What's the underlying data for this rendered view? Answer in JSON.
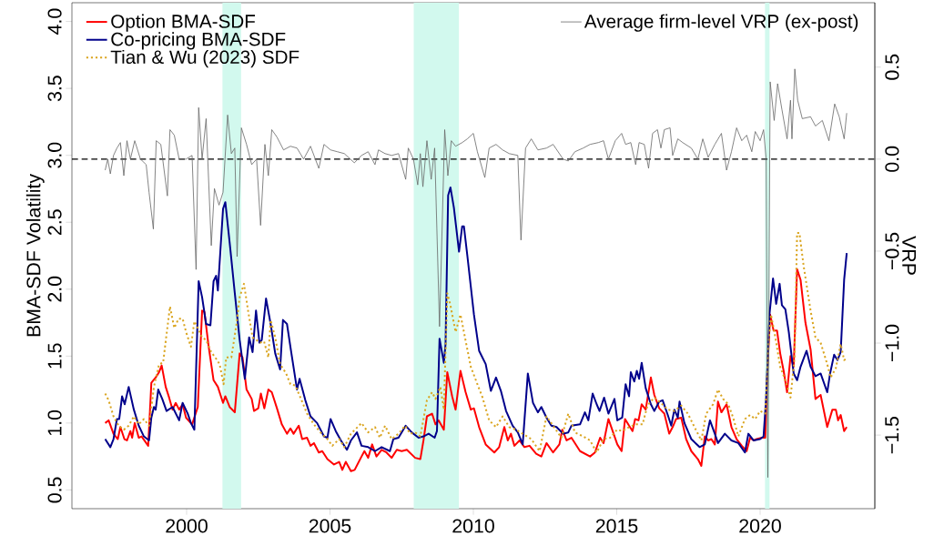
{
  "chart_data": {
    "type": "line",
    "ylabel": "BMA-SDF Volatility",
    "y2label": "VRP",
    "legend": "top",
    "grid": false,
    "xlim": [
      1996.0,
      2024.0
    ],
    "xticks": [
      2000,
      2005,
      2010,
      2015,
      2020
    ],
    "ylim": [
      0.36,
      4.14
    ],
    "yticks": [
      0.5,
      {
        "value": 1,
        "label": "1.0"
      },
      1.5,
      {
        "value": 2,
        "label": "2.0"
      },
      2.5,
      {
        "value": 3,
        "label": "3.0"
      },
      3.5,
      {
        "value": 4,
        "label": "4.0"
      }
    ],
    "y2lim": [
      -1.9,
      0.85
    ],
    "y2ticks": [
      0.5,
      {
        "value": 0,
        "label": "0.0"
      },
      {
        "value": -0.5,
        "label": "−0.5"
      },
      {
        "value": -1,
        "label": "−1.0"
      },
      {
        "value": -1.5,
        "label": "−1.5"
      }
    ],
    "bands": [
      {
        "axis": "x",
        "from": 2001.25,
        "to": 2001.9,
        "color": "#d2f9ee"
      },
      {
        "axis": "x",
        "from": 2007.92,
        "to": 2009.5,
        "color": "#d2f9ee"
      },
      {
        "axis": "x",
        "from": 2020.17,
        "to": 2020.33,
        "color": "#d2f9ee"
      }
    ],
    "ref_lines": [
      {
        "axis": "y2",
        "value": 0,
        "color": "#000000",
        "line_style": "dashed"
      }
    ],
    "series": [
      {
        "name": "Option BMA-SDF",
        "color": "#ff0000",
        "line_style": "solid",
        "x": [
          1997.16,
          1997.28,
          1997.45,
          1997.6,
          1997.69,
          1997.83,
          1997.92,
          1998.04,
          1998.1,
          1998.19,
          1998.33,
          1998.43,
          1998.66,
          1998.77,
          1998.92,
          1999.04,
          1999.13,
          1999.27,
          1999.39,
          1999.51,
          1999.62,
          1999.74,
          1999.86,
          1999.98,
          2000.19,
          2000.39,
          2000.54,
          2000.62,
          2000.77,
          2000.94,
          2001.09,
          2001.27,
          2001.35,
          2001.5,
          2001.68,
          2001.85,
          2001.95,
          2002.09,
          2002.27,
          2002.35,
          2002.5,
          2002.59,
          2002.71,
          2002.85,
          2002.97,
          2003.15,
          2003.32,
          2003.5,
          2003.62,
          2003.73,
          2003.91,
          2004.03,
          2004.2,
          2004.32,
          2004.44,
          2004.61,
          2004.73,
          2004.91,
          2005.14,
          2005.32,
          2005.43,
          2005.55,
          2005.73,
          2005.86,
          2006.1,
          2006.2,
          2006.33,
          2006.47,
          2006.62,
          2006.8,
          2006.97,
          2007.15,
          2007.33,
          2007.5,
          2007.68,
          2007.97,
          2008.15,
          2008.26,
          2008.38,
          2008.56,
          2008.68,
          2008.79,
          2008.97,
          2009.09,
          2009.26,
          2009.38,
          2009.55,
          2009.73,
          2009.91,
          2010.02,
          2010.2,
          2010.43,
          2010.73,
          2010.9,
          2011.08,
          2011.2,
          2011.31,
          2011.43,
          2011.61,
          2011.78,
          2011.96,
          2012.19,
          2012.37,
          2012.55,
          2012.78,
          2013.0,
          2013.1,
          2013.25,
          2013.42,
          2013.72,
          2014.07,
          2014.24,
          2014.42,
          2014.54,
          2014.71,
          2014.89,
          2015.02,
          2015.17,
          2015.29,
          2015.43,
          2015.55,
          2015.64,
          2015.76,
          2015.87,
          2016.01,
          2016.19,
          2016.31,
          2016.48,
          2016.66,
          2016.83,
          2016.95,
          2017.07,
          2017.25,
          2017.42,
          2017.6,
          2017.83,
          2017.95,
          2018.07,
          2018.19,
          2018.3,
          2018.42,
          2018.53,
          2018.65,
          2018.83,
          2019.0,
          2019.18,
          2019.36,
          2019.53,
          2019.65,
          2019.77,
          2019.88,
          2020.06,
          2020.18,
          2020.26,
          2020.35,
          2020.47,
          2020.59,
          2020.7,
          2020.82,
          2020.94,
          2021.06,
          2021.17,
          2021.29,
          2021.41,
          2021.58,
          2021.76,
          2021.93,
          2022.11,
          2022.34,
          2022.52,
          2022.64,
          2022.72,
          2022.81,
          2022.93,
          2023.02
        ],
        "values": [
          1.0,
          1.02,
          0.92,
          0.88,
          0.97,
          0.88,
          0.87,
          0.94,
          0.89,
          1.0,
          0.89,
          0.9,
          0.83,
          1.3,
          1.34,
          1.38,
          1.43,
          1.27,
          1.19,
          1.1,
          1.15,
          1.1,
          1.14,
          1.04,
          0.99,
          1.12,
          1.84,
          1.83,
          1.57,
          1.32,
          1.27,
          1.15,
          1.2,
          1.12,
          1.08,
          1.52,
          1.49,
          1.25,
          1.18,
          1.09,
          1.11,
          1.22,
          1.11,
          1.25,
          1.23,
          1.11,
          0.99,
          0.92,
          0.96,
          0.92,
          0.98,
          0.88,
          0.89,
          0.83,
          0.85,
          0.78,
          0.79,
          0.73,
          0.69,
          0.71,
          0.65,
          0.71,
          0.64,
          0.65,
          0.75,
          0.79,
          0.74,
          0.84,
          0.75,
          0.8,
          0.78,
          0.74,
          0.8,
          0.79,
          0.8,
          0.74,
          0.73,
          0.87,
          1.05,
          1.07,
          0.99,
          1.02,
          0.95,
          1.38,
          1.2,
          1.1,
          1.39,
          1.23,
          1.1,
          1.11,
          0.97,
          0.84,
          0.78,
          0.82,
          0.97,
          0.87,
          0.92,
          0.83,
          0.87,
          0.82,
          0.83,
          0.77,
          0.75,
          0.85,
          0.78,
          0.84,
          0.95,
          0.87,
          0.89,
          0.79,
          0.75,
          0.78,
          0.89,
          0.85,
          1.03,
          0.92,
          0.84,
          0.79,
          1.03,
          0.98,
          0.94,
          1.03,
          1.02,
          1.14,
          1.1,
          1.34,
          1.21,
          1.11,
          1.07,
          0.92,
          0.97,
          1.03,
          1.04,
          0.88,
          0.79,
          0.73,
          0.68,
          0.9,
          0.87,
          0.88,
          0.84,
          1.16,
          1.08,
          1.14,
          0.97,
          0.88,
          0.83,
          0.79,
          0.89,
          0.87,
          0.88,
          0.89,
          0.89,
          1.42,
          1.81,
          1.69,
          1.69,
          1.52,
          1.39,
          1.23,
          1.5,
          1.42,
          2.15,
          2.07,
          1.75,
          1.55,
          1.18,
          1.21,
          0.97,
          1.1,
          1.1,
          1.02,
          1.06,
          0.94,
          0.97
        ]
      },
      {
        "name": "Co-pricing BMA-SDF",
        "color": "#00008b",
        "line_style": "solid",
        "x": [
          1997.16,
          1997.34,
          1997.45,
          1997.57,
          1997.65,
          1997.75,
          1997.84,
          1997.98,
          1998.16,
          1998.33,
          1998.51,
          1998.69,
          1998.77,
          1998.86,
          1998.92,
          1999.01,
          1999.15,
          1999.3,
          1999.51,
          1999.74,
          1999.86,
          2000.04,
          2000.15,
          2000.27,
          2000.42,
          2000.54,
          2000.68,
          2000.83,
          2000.94,
          2001.03,
          2001.09,
          2001.27,
          2001.35,
          2001.5,
          2001.68,
          2001.85,
          2002.03,
          2002.18,
          2002.3,
          2002.42,
          2002.54,
          2002.62,
          2002.77,
          2002.93,
          2003.09,
          2003.26,
          2003.36,
          2003.5,
          2003.64,
          2003.85,
          2003.94,
          2004.14,
          2004.32,
          2004.55,
          2004.79,
          2004.91,
          2005.02,
          2005.2,
          2005.38,
          2005.59,
          2005.73,
          2005.94,
          2006.1,
          2006.33,
          2006.57,
          2006.8,
          2007.09,
          2007.21,
          2007.39,
          2007.64,
          2007.85,
          2008.09,
          2008.26,
          2008.44,
          2008.65,
          2008.73,
          2008.82,
          2008.97,
          2009.03,
          2009.12,
          2009.2,
          2009.32,
          2009.5,
          2009.61,
          2009.67,
          2009.79,
          2010.02,
          2010.2,
          2010.43,
          2010.61,
          2010.79,
          2010.96,
          2011.14,
          2011.37,
          2011.55,
          2011.72,
          2011.9,
          2012.08,
          2012.25,
          2012.37,
          2012.55,
          2012.72,
          2012.9,
          2013.13,
          2013.31,
          2013.42,
          2013.72,
          2013.89,
          2014.01,
          2014.16,
          2014.3,
          2014.4,
          2014.56,
          2014.71,
          2014.92,
          2015.02,
          2015.19,
          2015.31,
          2015.43,
          2015.49,
          2015.61,
          2015.7,
          2015.78,
          2015.87,
          2016.01,
          2016.19,
          2016.31,
          2016.48,
          2016.6,
          2016.78,
          2016.9,
          2017.01,
          2017.13,
          2017.19,
          2017.36,
          2017.6,
          2017.89,
          2018.07,
          2018.25,
          2018.42,
          2018.53,
          2018.77,
          2019.0,
          2019.24,
          2019.47,
          2019.59,
          2019.77,
          2020.0,
          2020.12,
          2020.21,
          2020.33,
          2020.45,
          2020.56,
          2020.68,
          2020.76,
          2020.88,
          2021.0,
          2021.17,
          2021.29,
          2021.41,
          2021.62,
          2021.76,
          2021.93,
          2022.11,
          2022.34,
          2022.44,
          2022.58,
          2022.7,
          2022.81,
          2022.93,
          2023.02
        ],
        "values": [
          0.88,
          0.82,
          0.88,
          1.03,
          1.03,
          1.2,
          1.14,
          1.27,
          1.1,
          0.98,
          0.9,
          0.87,
          1.04,
          1.12,
          1.1,
          1.25,
          1.18,
          1.09,
          1.12,
          1.02,
          1.15,
          1.07,
          1.0,
          0.95,
          2.06,
          1.94,
          1.74,
          1.73,
          2.06,
          2.1,
          1.99,
          2.6,
          2.65,
          2.35,
          1.97,
          1.62,
          1.33,
          1.64,
          1.53,
          1.84,
          1.6,
          1.62,
          1.93,
          1.74,
          1.52,
          1.4,
          1.77,
          1.74,
          1.54,
          1.25,
          1.33,
          1.17,
          1.05,
          1.0,
          0.9,
          0.89,
          1.03,
          0.94,
          0.87,
          0.8,
          0.87,
          0.93,
          0.83,
          0.82,
          0.79,
          0.82,
          0.79,
          0.88,
          0.89,
          0.98,
          0.93,
          0.89,
          0.9,
          0.92,
          0.89,
          0.94,
          1.63,
          1.45,
          1.59,
          2.7,
          2.76,
          2.61,
          2.28,
          2.47,
          2.47,
          2.25,
          1.81,
          1.54,
          1.44,
          1.24,
          1.34,
          1.24,
          1.09,
          0.98,
          0.93,
          0.84,
          1.37,
          1.15,
          1.08,
          1.12,
          1.04,
          0.98,
          0.97,
          0.92,
          0.93,
          0.98,
          0.99,
          1.08,
          1.02,
          1.22,
          1.14,
          1.09,
          1.19,
          1.07,
          1.18,
          1.02,
          1.04,
          1.29,
          1.2,
          1.38,
          1.31,
          1.39,
          1.33,
          1.45,
          1.26,
          1.14,
          1.09,
          1.16,
          1.17,
          1.06,
          0.98,
          1.1,
          1.04,
          1.16,
          1.0,
          0.88,
          0.82,
          0.84,
          1.02,
          0.92,
          0.85,
          0.92,
          0.87,
          0.85,
          0.78,
          0.92,
          0.87,
          0.88,
          0.9,
          1.19,
          1.82,
          2.08,
          1.89,
          2.04,
          1.88,
          1.85,
          1.68,
          1.37,
          1.32,
          1.42,
          1.54,
          1.42,
          1.35,
          1.37,
          1.23,
          1.37,
          1.51,
          1.47,
          1.53,
          2.07,
          2.27
        ]
      },
      {
        "name": "Tian & Wu (2023) SDF",
        "color": "#daa520",
        "line_style": "dotted",
        "x": [
          1997.16,
          1997.28,
          1997.45,
          1997.63,
          1997.81,
          1997.98,
          1998.16,
          1998.33,
          1998.51,
          1998.69,
          1998.86,
          1999.04,
          1999.18,
          1999.27,
          1999.42,
          1999.57,
          1999.72,
          1999.86,
          1999.98,
          2000.15,
          2000.27,
          2000.39,
          2000.54,
          2000.68,
          2000.86,
          2001.03,
          2001.15,
          2001.29,
          2001.38,
          2001.56,
          2001.74,
          2001.85,
          2002.0,
          2002.15,
          2002.3,
          2002.44,
          2002.56,
          2002.7,
          2002.85,
          2002.93,
          2003.09,
          2003.26,
          2003.47,
          2003.62,
          2003.79,
          2003.97,
          2004.2,
          2004.44,
          2004.67,
          2004.91,
          2005.08,
          2005.32,
          2005.5,
          2005.73,
          2006.1,
          2006.33,
          2006.57,
          2006.74,
          2006.92,
          2007.15,
          2007.39,
          2007.62,
          2007.8,
          2007.97,
          2008.15,
          2008.38,
          2008.56,
          2008.68,
          2008.85,
          2008.97,
          2009.09,
          2009.2,
          2009.38,
          2009.55,
          2009.67,
          2009.91,
          2010.14,
          2010.32,
          2010.55,
          2010.79,
          2011.02,
          2011.25,
          2011.49,
          2011.72,
          2012.02,
          2012.31,
          2012.55,
          2012.78,
          2013.07,
          2013.31,
          2013.54,
          2013.83,
          2014.07,
          2014.3,
          2014.54,
          2014.77,
          2015.01,
          2015.19,
          2015.43,
          2015.66,
          2015.9,
          2016.07,
          2016.31,
          2016.54,
          2016.78,
          2017.01,
          2017.25,
          2017.48,
          2017.71,
          2017.95,
          2018.12,
          2018.36,
          2018.53,
          2018.71,
          2018.89,
          2019.06,
          2019.24,
          2019.47,
          2019.65,
          2019.83,
          2020.0,
          2020.18,
          2020.29,
          2020.38,
          2020.53,
          2020.7,
          2020.88,
          2021.06,
          2021.2,
          2021.29,
          2021.37,
          2021.52,
          2021.76,
          2021.93,
          2022.11,
          2022.34,
          2022.46,
          2022.64,
          2022.81,
          2022.93,
          2023.02
        ],
        "values": [
          1.22,
          1.17,
          1.05,
          0.98,
          0.95,
          0.98,
          1.05,
          0.99,
          1.03,
          0.98,
          1.27,
          1.44,
          1.45,
          1.61,
          1.87,
          1.71,
          1.78,
          1.78,
          1.68,
          1.57,
          1.76,
          1.71,
          1.64,
          1.62,
          1.53,
          1.48,
          1.44,
          1.29,
          1.49,
          1.49,
          1.74,
          1.94,
          2.04,
          1.83,
          1.64,
          1.62,
          1.6,
          1.61,
          1.49,
          1.77,
          1.64,
          1.44,
          1.37,
          1.29,
          1.28,
          1.19,
          1.07,
          0.99,
          0.93,
          0.88,
          0.83,
          0.88,
          0.82,
          0.92,
          1.0,
          0.93,
          0.97,
          0.89,
          0.98,
          0.88,
          0.92,
          0.98,
          0.92,
          0.93,
          0.9,
          1.17,
          1.23,
          1.18,
          1.27,
          1.1,
          1.97,
          1.88,
          1.68,
          1.81,
          1.68,
          1.42,
          1.29,
          1.19,
          1.02,
          0.97,
          1.05,
          0.97,
          0.95,
          0.92,
          0.88,
          0.79,
          1.05,
          0.98,
          0.89,
          1.07,
          0.93,
          0.9,
          0.87,
          0.78,
          0.88,
          0.89,
          0.95,
          0.94,
          0.97,
          0.99,
          0.99,
          1.13,
          1.19,
          1.15,
          1.1,
          1.09,
          1.13,
          1.07,
          0.97,
          0.87,
          1.07,
          1.14,
          1.25,
          1.18,
          1.14,
          1.04,
          0.9,
          1.03,
          1.06,
          1.03,
          1.09,
          1.07,
          1.59,
          1.81,
          1.64,
          1.42,
          1.32,
          1.19,
          1.49,
          2.42,
          2.42,
          2.17,
          1.84,
          1.64,
          1.6,
          1.44,
          1.34,
          1.41,
          1.59,
          1.47,
          1.48
        ]
      },
      {
        "name": "Average firm-level VRP (ex-post)",
        "color": "#666666",
        "line_style": "solid",
        "axis": "y2",
        "x": [
          1997.16,
          1997.25,
          1997.34,
          1997.45,
          1997.57,
          1997.69,
          1997.81,
          1997.92,
          1998.04,
          1998.19,
          1998.39,
          1998.59,
          1998.69,
          1998.84,
          1998.94,
          1999.1,
          1999.33,
          1999.42,
          1999.57,
          1999.74,
          1999.98,
          2000.19,
          2000.33,
          2000.42,
          2000.54,
          2000.68,
          2000.86,
          2000.97,
          2001.13,
          2001.27,
          2001.43,
          2001.56,
          2001.68,
          2001.76,
          2001.91,
          2002.09,
          2002.27,
          2002.44,
          2002.58,
          2002.73,
          2002.85,
          2002.97,
          2003.15,
          2003.38,
          2003.62,
          2003.85,
          2004.08,
          2004.32,
          2004.61,
          2004.79,
          2005.02,
          2005.26,
          2005.5,
          2005.85,
          2006.1,
          2006.33,
          2006.57,
          2006.69,
          2006.92,
          2007.15,
          2007.39,
          2007.64,
          2007.73,
          2007.91,
          2008.06,
          2008.15,
          2008.24,
          2008.38,
          2008.53,
          2008.65,
          2008.82,
          2009.0,
          2009.11,
          2009.23,
          2009.38,
          2009.61,
          2009.79,
          2010.0,
          2010.14,
          2010.4,
          2010.55,
          2010.79,
          2011.02,
          2011.25,
          2011.55,
          2011.66,
          2011.82,
          2012.02,
          2012.25,
          2012.55,
          2012.78,
          2013.13,
          2013.31,
          2013.54,
          2013.83,
          2014.07,
          2014.36,
          2014.54,
          2014.71,
          2014.95,
          2015.17,
          2015.31,
          2015.49,
          2015.66,
          2015.78,
          2015.96,
          2016.11,
          2016.25,
          2016.42,
          2016.54,
          2016.66,
          2016.86,
          2016.95,
          2017.13,
          2017.3,
          2017.6,
          2017.83,
          2018.0,
          2018.19,
          2018.42,
          2018.65,
          2018.83,
          2019.0,
          2019.18,
          2019.36,
          2019.53,
          2019.71,
          2019.83,
          2020.0,
          2020.12,
          2020.21,
          2020.27,
          2020.35,
          2020.49,
          2020.61,
          2020.76,
          2020.94,
          2021.06,
          2021.11,
          2021.21,
          2021.31,
          2021.47,
          2021.76,
          2021.93,
          2022.17,
          2022.4,
          2022.6,
          2022.76,
          2022.93,
          2023.02
        ],
        "values": [
          -0.06,
          0.0,
          -0.08,
          0.02,
          0.06,
          0.09,
          -0.09,
          0.1,
          0.0,
          0.1,
          0.0,
          -0.03,
          -0.18,
          -0.38,
          0.1,
          0.08,
          -0.2,
          0.16,
          0.13,
          0.0,
          0.0,
          0.02,
          -0.6,
          0.28,
          0.0,
          0.22,
          -0.47,
          -0.16,
          -0.25,
          -0.18,
          0.24,
          0.03,
          0.06,
          -0.53,
          0.17,
          0.08,
          -0.03,
          0.0,
          -0.36,
          0.08,
          -0.09,
          0.16,
          0.12,
          0.05,
          0.07,
          0.06,
          0.0,
          0.07,
          -0.05,
          0.08,
          0.05,
          0.04,
          0.03,
          -0.02,
          0.02,
          0.04,
          -0.03,
          0.05,
          0.03,
          0.02,
          0.03,
          -0.11,
          0.06,
          0.0,
          -0.14,
          0.03,
          -0.15,
          0.1,
          -0.11,
          0.06,
          -0.91,
          0.16,
          -0.09,
          0.1,
          0.07,
          0.09,
          0.11,
          0.14,
          0.04,
          -0.1,
          0.06,
          0.08,
          0.05,
          0.03,
          0.02,
          -0.44,
          0.06,
          0.11,
          0.05,
          0.06,
          0.08,
          0.0,
          -0.01,
          0.04,
          0.06,
          0.08,
          0.09,
          0.1,
          0.0,
          0.1,
          0.14,
          0.08,
          0.09,
          -0.03,
          0.09,
          0.08,
          -0.05,
          0.14,
          0.16,
          0.06,
          0.16,
          0.17,
          0.02,
          0.11,
          0.09,
          0.06,
          0.0,
          0.11,
          0.01,
          0.08,
          0.14,
          -0.06,
          0.04,
          0.17,
          0.1,
          0.13,
          0.04,
          0.15,
          0.1,
          0.16,
          0.0,
          -1.73,
          0.42,
          0.21,
          0.41,
          0.27,
          0.11,
          0.32,
          0.11,
          0.49,
          0.32,
          0.22,
          0.23,
          0.18,
          0.21,
          0.1,
          0.3,
          0.23,
          0.11,
          0.25
        ]
      }
    ]
  }
}
